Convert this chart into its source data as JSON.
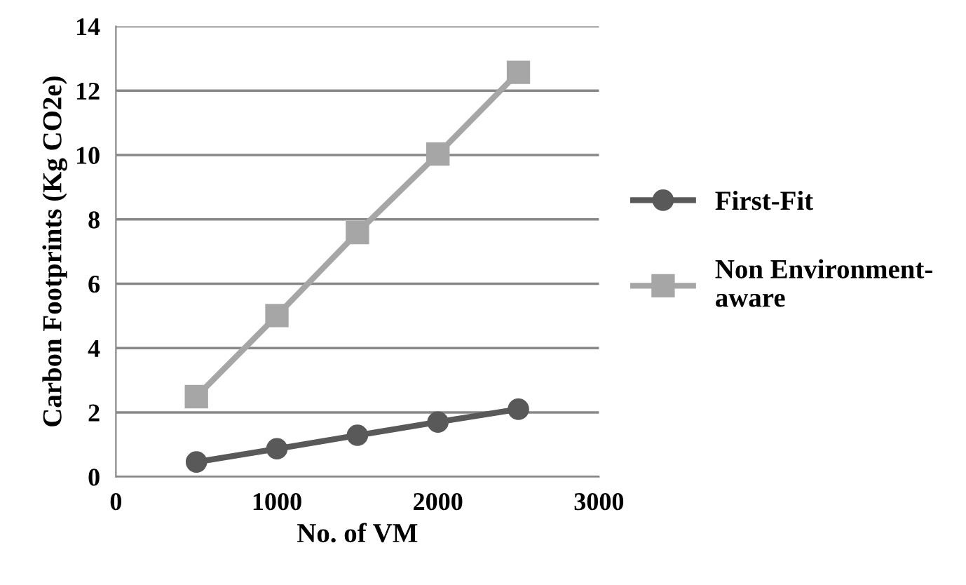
{
  "chart_data": {
    "type": "line",
    "xlabel": "No. of VM",
    "ylabel": "Carbon Footprints (Kg CO2e)",
    "x": [
      500,
      1000,
      1500,
      2000,
      2500
    ],
    "series": [
      {
        "name": "First-Fit",
        "color": "#595959",
        "marker": "circle",
        "values": [
          0.46,
          0.87,
          1.29,
          1.7,
          2.1
        ]
      },
      {
        "name": "Non Environment-\naware",
        "color": "#a6a6a6",
        "marker": "square",
        "values": [
          2.49,
          5.01,
          7.59,
          10.03,
          12.57
        ]
      }
    ],
    "xlim": [
      0,
      3000
    ],
    "xticks": [
      0,
      1000,
      2000,
      3000
    ],
    "ylim": [
      0,
      14
    ],
    "yticks": [
      0,
      2,
      4,
      6,
      8,
      10,
      12,
      14
    ],
    "grid": "y",
    "legend": "right",
    "line_style": "solid"
  }
}
